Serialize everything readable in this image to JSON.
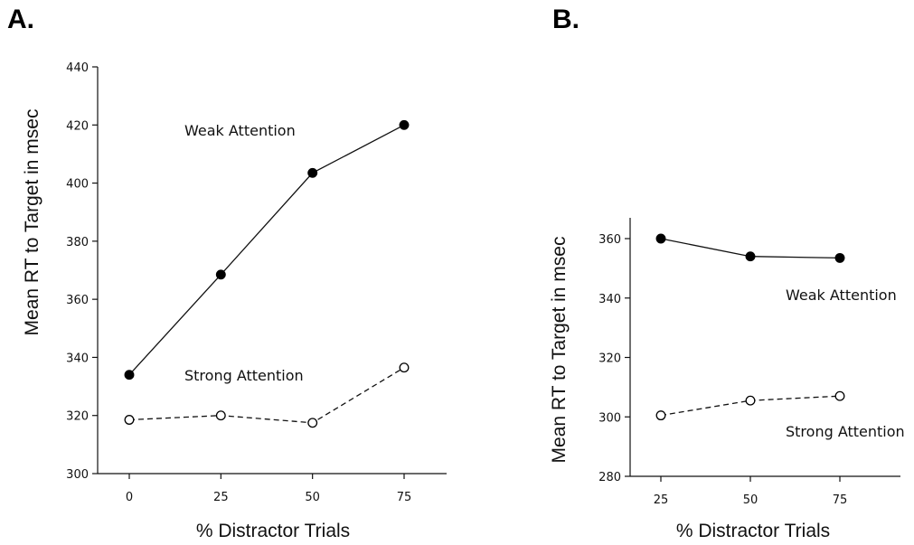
{
  "chart_data": [
    {
      "panel": "A.",
      "type": "line",
      "xlabel": "% Distractor Trials",
      "ylabel": "Mean RT to Target in msec",
      "x": [
        0,
        25,
        50,
        75
      ],
      "xticks": [
        "0",
        "25",
        "50",
        "75"
      ],
      "yticks": [
        "300",
        "320",
        "340",
        "360",
        "380",
        "400",
        "420",
        "440"
      ],
      "ylim": [
        300,
        440
      ],
      "series": [
        {
          "name": "Weak Attention",
          "marker": "filled-circle",
          "line": "solid",
          "values": [
            334,
            368.5,
            403.5,
            420
          ]
        },
        {
          "name": "Strong Attention",
          "marker": "open-circle",
          "line": "dashed",
          "values": [
            318.5,
            320,
            317.5,
            336.5
          ]
        }
      ]
    },
    {
      "panel": "B.",
      "type": "line",
      "xlabel": "% Distractor Trials",
      "ylabel": "Mean RT to Target in msec",
      "x": [
        25,
        50,
        75
      ],
      "xticks": [
        "25",
        "50",
        "75"
      ],
      "yticks": [
        "280",
        "300",
        "320",
        "340",
        "360"
      ],
      "ylim": [
        280,
        366
      ],
      "series": [
        {
          "name": "Weak Attention",
          "marker": "filled-circle",
          "line": "solid",
          "values": [
            360,
            354,
            353.5
          ]
        },
        {
          "name": "Strong Attention",
          "marker": "open-circle",
          "line": "dashed",
          "values": [
            300.5,
            305.5,
            307
          ]
        }
      ]
    }
  ]
}
